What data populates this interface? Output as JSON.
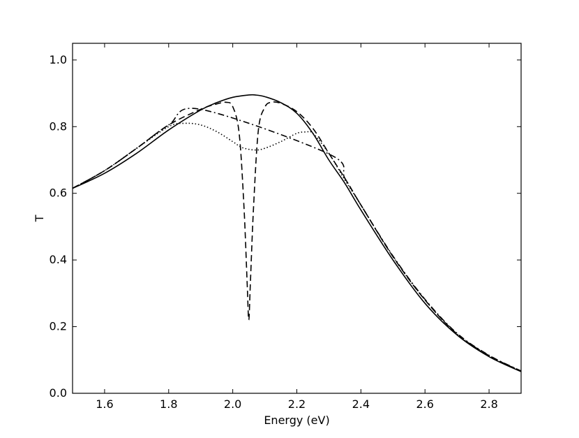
{
  "chart_data": {
    "type": "line",
    "xlabel": "Energy (eV)",
    "ylabel": "T",
    "xlim": [
      1.5,
      2.9
    ],
    "ylim": [
      0.0,
      1.05
    ],
    "xticks": [
      1.6,
      1.8,
      2.0,
      2.2,
      2.4,
      2.6,
      2.8
    ],
    "xtick_labels": [
      "1.6",
      "1.8",
      "2.0",
      "2.2",
      "2.4",
      "2.6",
      "2.8"
    ],
    "yticks": [
      0.0,
      0.2,
      0.4,
      0.6,
      0.8,
      1.0
    ],
    "ytick_labels": [
      "0.0",
      "0.2",
      "0.4",
      "0.6",
      "0.8",
      "1.0"
    ],
    "grid": false,
    "legend": "none",
    "series": [
      {
        "style": "solid",
        "x": [
          1.5,
          1.6,
          1.7,
          1.8,
          1.9,
          1.95,
          2.0,
          2.05,
          2.07,
          2.1,
          2.15,
          2.2,
          2.25,
          2.3,
          2.35,
          2.4,
          2.5,
          2.6,
          2.7,
          2.8,
          2.9
        ],
        "y": [
          0.615,
          0.66,
          0.72,
          0.79,
          0.85,
          0.872,
          0.888,
          0.895,
          0.895,
          0.89,
          0.872,
          0.84,
          0.78,
          0.7,
          0.63,
          0.55,
          0.4,
          0.27,
          0.175,
          0.11,
          0.065
        ]
      },
      {
        "style": "dashed",
        "x": [
          1.5,
          1.6,
          1.7,
          1.8,
          1.9,
          1.95,
          1.98,
          2.0,
          2.02,
          2.035,
          2.045,
          2.05,
          2.055,
          2.065,
          2.08,
          2.1,
          2.12,
          2.15,
          2.2,
          2.25,
          2.3,
          2.35,
          2.4,
          2.5,
          2.6,
          2.7,
          2.8,
          2.9
        ],
        "y": [
          0.615,
          0.668,
          0.735,
          0.805,
          0.852,
          0.868,
          0.873,
          0.86,
          0.78,
          0.56,
          0.33,
          0.22,
          0.33,
          0.56,
          0.79,
          0.858,
          0.873,
          0.87,
          0.845,
          0.795,
          0.72,
          0.645,
          0.565,
          0.41,
          0.28,
          0.178,
          0.113,
          0.066
        ]
      },
      {
        "style": "dotted",
        "x": [
          1.5,
          1.6,
          1.7,
          1.8,
          1.85,
          1.9,
          1.95,
          2.0,
          2.03,
          2.07,
          2.1,
          2.15,
          2.2,
          2.23,
          2.25,
          2.3,
          2.35,
          2.4,
          2.5,
          2.6,
          2.7,
          2.8,
          2.9
        ],
        "y": [
          0.615,
          0.668,
          0.735,
          0.8,
          0.81,
          0.805,
          0.785,
          0.755,
          0.737,
          0.73,
          0.735,
          0.755,
          0.78,
          0.784,
          0.78,
          0.72,
          0.64,
          0.565,
          0.41,
          0.28,
          0.178,
          0.113,
          0.066
        ]
      },
      {
        "style": "dashdot",
        "x": [
          1.5,
          1.6,
          1.7,
          1.8,
          1.9,
          2.3,
          2.35,
          2.4,
          2.5,
          2.6,
          2.7,
          2.8,
          2.9
        ],
        "y": [
          0.615,
          0.668,
          0.735,
          0.805,
          0.852,
          0.718,
          0.645,
          0.565,
          0.412,
          0.282,
          0.18,
          0.114,
          0.067
        ]
      }
    ]
  }
}
